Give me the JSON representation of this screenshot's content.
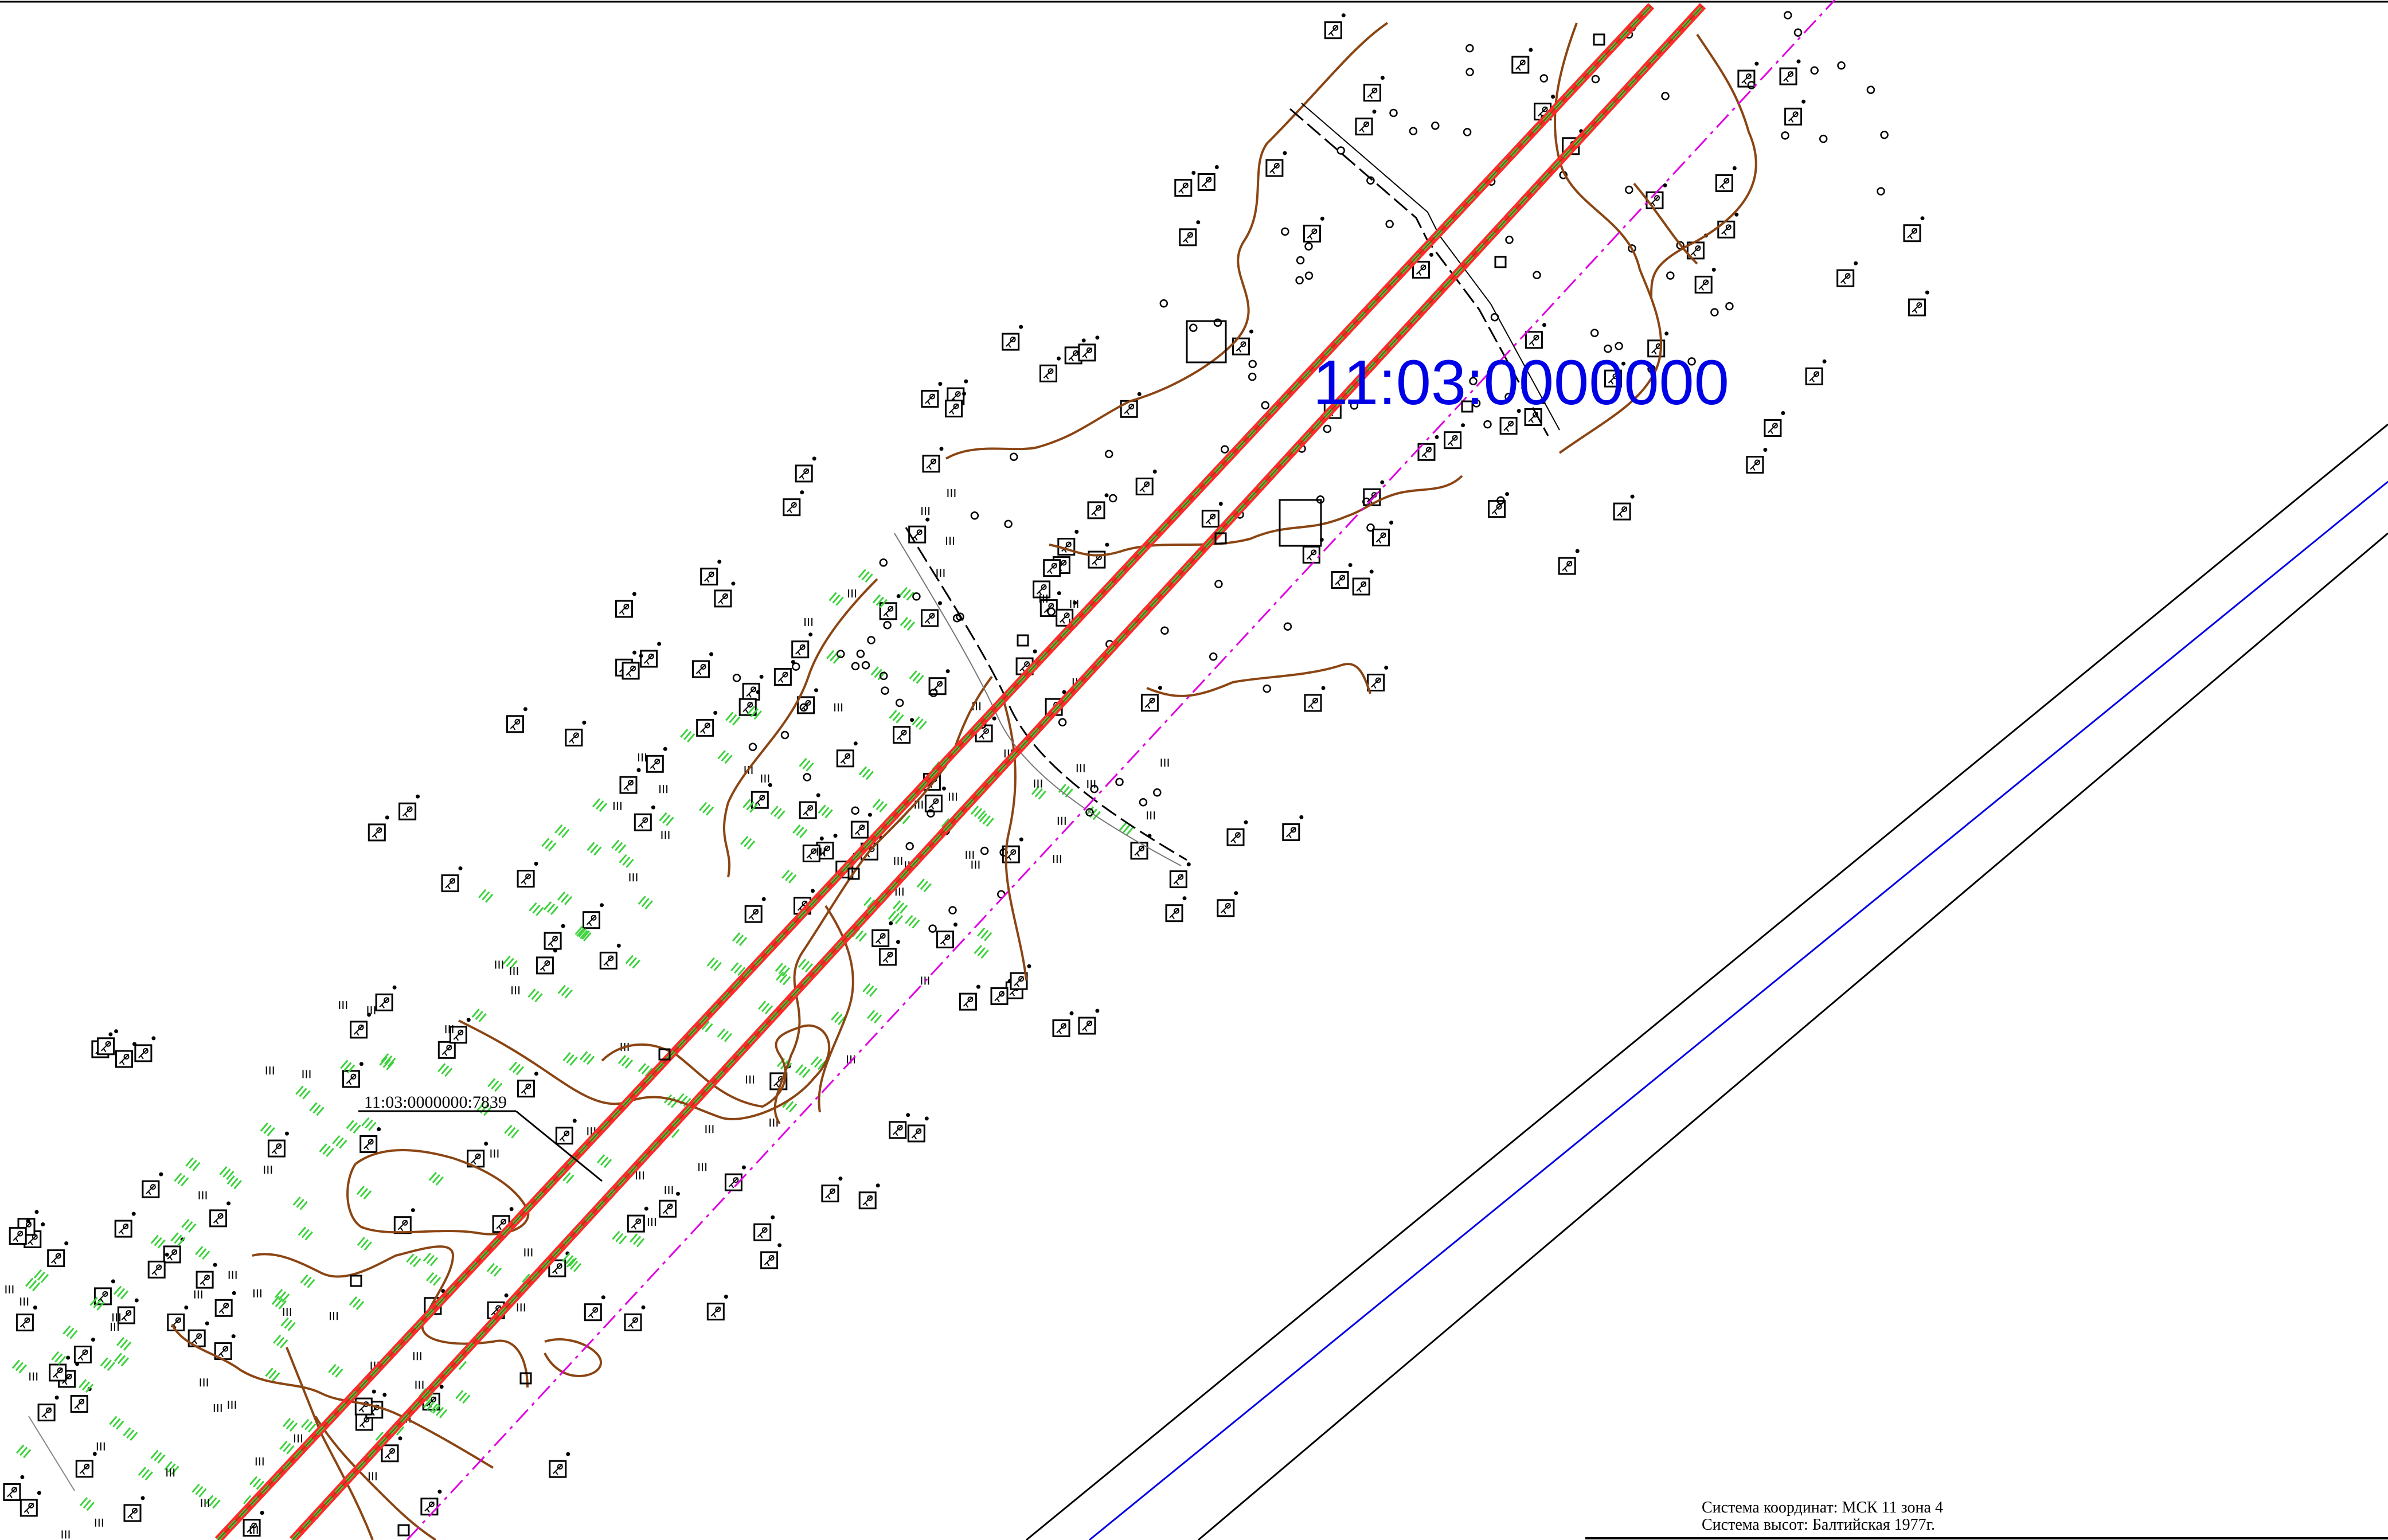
{
  "map": {
    "cadastral_quarter": "11:03:0000000",
    "parcel_number": "11:03:0000000:7839",
    "symbol_text": "ꟷ ꟷ",
    "colors": {
      "axis": "#e00000",
      "road_edge": "#ff2a2a",
      "grass": "#3cd23c",
      "contour": "#8b4513",
      "boundary": "#e000e0",
      "quarter_label": "#0000e6",
      "river": "#0000e6",
      "line": "#000000"
    },
    "icons": [
      "tree-symbol-icon",
      "bush-symbol-icon",
      "meadow-hatch-icon",
      "pole-icon",
      "survey-point-icon"
    ]
  },
  "footer": {
    "coordinate_system": "Система координат: МСК 11 зона 4",
    "height_system": "Система высот: Балтийская 1977г."
  }
}
